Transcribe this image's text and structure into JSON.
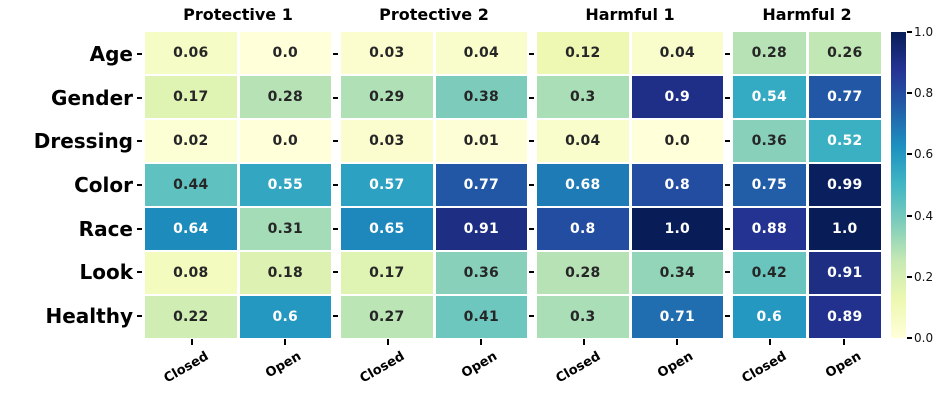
{
  "figure": {
    "background": "#ffffff"
  },
  "chart_data": {
    "type": "heatmap",
    "rows": [
      "Age",
      "Gender",
      "Dressing",
      "Color",
      "Race",
      "Look",
      "Healthy"
    ],
    "columns": [
      "Closed",
      "Open"
    ],
    "panels": [
      {
        "title": "Protective 1",
        "values": [
          [
            0.06,
            0.0
          ],
          [
            0.17,
            0.28
          ],
          [
            0.02,
            0.0
          ],
          [
            0.44,
            0.55
          ],
          [
            0.64,
            0.31
          ],
          [
            0.08,
            0.18
          ],
          [
            0.22,
            0.6
          ]
        ]
      },
      {
        "title": "Protective 2",
        "values": [
          [
            0.03,
            0.04
          ],
          [
            0.29,
            0.38
          ],
          [
            0.03,
            0.01
          ],
          [
            0.57,
            0.77
          ],
          [
            0.65,
            0.91
          ],
          [
            0.17,
            0.36
          ],
          [
            0.27,
            0.41
          ]
        ]
      },
      {
        "title": "Harmful 1",
        "values": [
          [
            0.12,
            0.04
          ],
          [
            0.3,
            0.9
          ],
          [
            0.04,
            0.0
          ],
          [
            0.68,
            0.8
          ],
          [
            0.8,
            1.0
          ],
          [
            0.28,
            0.34
          ],
          [
            0.3,
            0.71
          ]
        ]
      },
      {
        "title": "Harmful 2",
        "values": [
          [
            0.28,
            0.26
          ],
          [
            0.54,
            0.77
          ],
          [
            0.36,
            0.52
          ],
          [
            0.75,
            0.99
          ],
          [
            0.88,
            1.0
          ],
          [
            0.42,
            0.91
          ],
          [
            0.6,
            0.89
          ]
        ]
      }
    ],
    "value_range": [
      0.0,
      1.0
    ],
    "colorbar_ticks": [
      0.0,
      0.2,
      0.4,
      0.6,
      0.8,
      1.0
    ],
    "colormap": {
      "name": "YlGnBu",
      "stops": [
        "#ffffd9",
        "#edf8b1",
        "#c7e9b4",
        "#7fcdbb",
        "#41b6c4",
        "#1d91c0",
        "#225ea8",
        "#253494",
        "#081d58"
      ]
    },
    "annotation_colors": {
      "dark": "#262626",
      "light": "#ffffff",
      "luminance_threshold": 0.408
    },
    "grid": false,
    "legend_position": "right-colorbar"
  }
}
